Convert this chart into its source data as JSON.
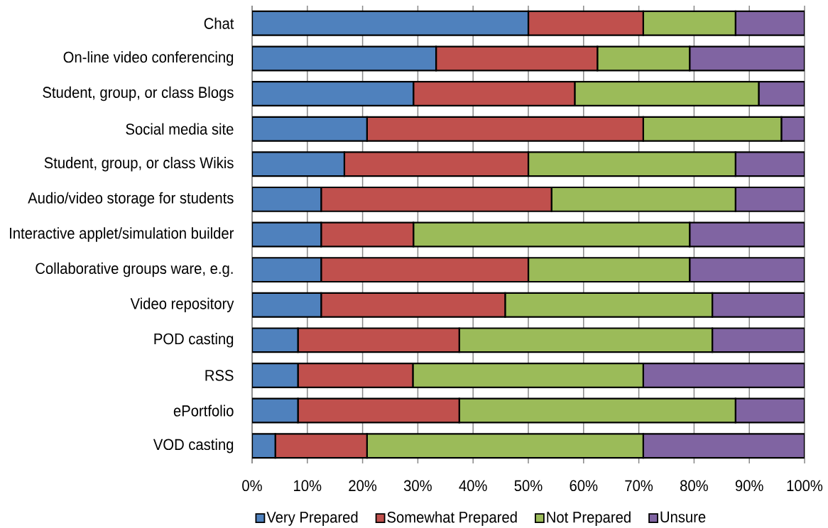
{
  "chart_data": {
    "type": "bar",
    "orientation": "horizontal",
    "stacked": true,
    "categories": [
      "Chat",
      "On-line video conferencing",
      "Student, group, or class Blogs",
      "Social media site",
      "Student, group, or class Wikis",
      "Audio/video storage for students",
      "Interactive applet/simulation builder",
      "Collaborative groups ware, e.g.",
      "Video repository",
      "POD casting",
      "RSS",
      "ePortfolio",
      "VOD casting"
    ],
    "series": [
      {
        "name": "Very Prepared",
        "color": "#4f81bd",
        "values": [
          50.0,
          33.3,
          29.2,
          20.8,
          16.7,
          12.5,
          12.5,
          12.5,
          12.5,
          8.3,
          8.3,
          8.3,
          4.2
        ]
      },
      {
        "name": "Somewhat Prepared",
        "color": "#c0504d",
        "values": [
          20.8,
          29.2,
          29.2,
          50.0,
          33.3,
          41.7,
          16.7,
          37.5,
          33.3,
          29.2,
          20.8,
          29.2,
          16.6
        ]
      },
      {
        "name": "Not Prepared",
        "color": "#9bbb59",
        "values": [
          16.7,
          16.7,
          33.3,
          25.0,
          37.5,
          33.3,
          50.0,
          29.2,
          37.5,
          45.8,
          41.7,
          50.0,
          50.0
        ]
      },
      {
        "name": "Unsure",
        "color": "#8064a2",
        "values": [
          12.5,
          20.8,
          8.3,
          4.2,
          12.5,
          12.5,
          20.8,
          20.8,
          16.7,
          16.7,
          29.2,
          12.5,
          29.2
        ]
      }
    ],
    "xlim": [
      0,
      100
    ],
    "xticks": [
      {
        "value": 0,
        "label": "0%"
      },
      {
        "value": 10,
        "label": "10%"
      },
      {
        "value": 20,
        "label": "20%"
      },
      {
        "value": 30,
        "label": "30%"
      },
      {
        "value": 40,
        "label": "40%"
      },
      {
        "value": 50,
        "label": "50%"
      },
      {
        "value": 60,
        "label": "60%"
      },
      {
        "value": 70,
        "label": "70%"
      },
      {
        "value": 80,
        "label": "80%"
      },
      {
        "value": 90,
        "label": "90%"
      },
      {
        "value": 100,
        "label": "100%"
      }
    ],
    "grid": "x",
    "legend": "bottom"
  }
}
